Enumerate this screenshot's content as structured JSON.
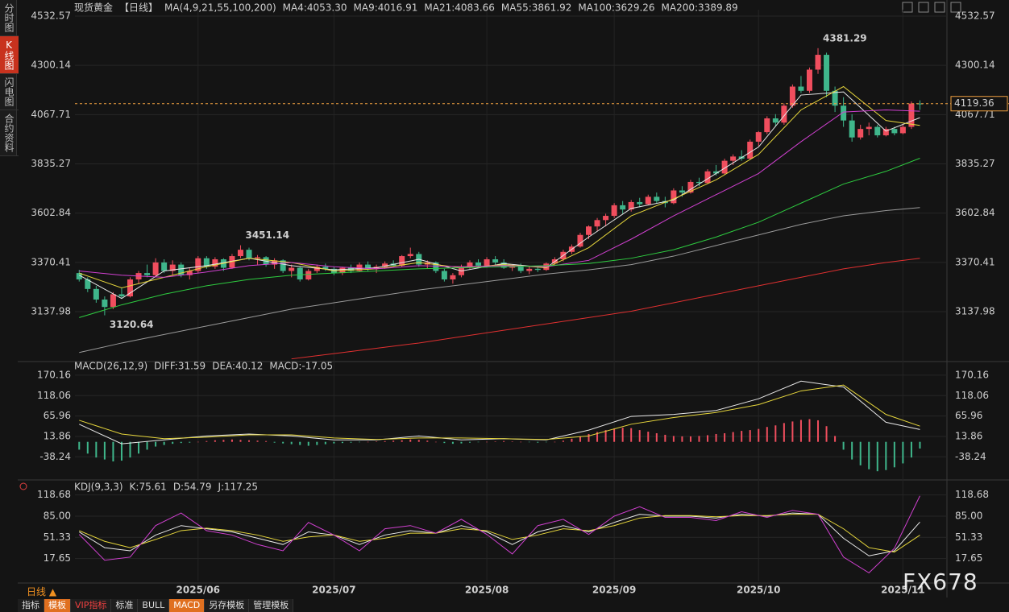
{
  "sidebar": [
    "分时图",
    "K线图",
    "闪电图",
    "合约资料"
  ],
  "footer": {
    "period": "日线 ▲",
    "tabs": [
      "指标",
      "模板",
      "VIP指标",
      "标准",
      "BULL",
      "MACD",
      "另存模板",
      "管理模板"
    ],
    "watermark": "FX678"
  },
  "chart_data": [
    {
      "type": "candlestick",
      "title": "现货黄金",
      "period": "【日线】",
      "ma_title": "MA(4,9,21,55,100,200)",
      "up_color": "#f04e5e",
      "down_color": "#3fb68b",
      "xlim": [
        -0.5,
        100
      ],
      "ylim": [
        2910,
        4563
      ],
      "yticks": [
        4532.57,
        4300.14,
        4067.71,
        3835.27,
        3602.84,
        3370.41,
        3137.98
      ],
      "xticks": [
        {
          "value": 14,
          "label": "2025/06"
        },
        {
          "value": 30,
          "label": "2025/07"
        },
        {
          "value": 48,
          "label": "2025/08"
        },
        {
          "value": 63,
          "label": "2025/09"
        },
        {
          "value": 80,
          "label": "2025/10"
        },
        {
          "value": 97,
          "label": "2025/11"
        }
      ],
      "candles": [
        [
          3320,
          3335,
          3280,
          3290
        ],
        [
          3290,
          3300,
          3230,
          3245
        ],
        [
          3245,
          3260,
          3180,
          3195
        ],
        [
          3195,
          3210,
          3120.64,
          3160
        ],
        [
          3160,
          3230,
          3150,
          3220
        ],
        [
          3220,
          3250,
          3200,
          3210
        ],
        [
          3210,
          3300,
          3205,
          3290
        ],
        [
          3290,
          3330,
          3270,
          3320
        ],
        [
          3320,
          3360,
          3300,
          3310
        ],
        [
          3310,
          3390,
          3300,
          3370
        ],
        [
          3370,
          3385,
          3320,
          3330
        ],
        [
          3330,
          3380,
          3310,
          3360
        ],
        [
          3360,
          3370,
          3300,
          3310
        ],
        [
          3310,
          3345,
          3290,
          3330
        ],
        [
          3330,
          3400,
          3320,
          3390
        ],
        [
          3390,
          3400,
          3340,
          3350
        ],
        [
          3350,
          3395,
          3340,
          3385
        ],
        [
          3385,
          3390,
          3330,
          3345
        ],
        [
          3345,
          3410,
          3340,
          3400
        ],
        [
          3400,
          3451.14,
          3390,
          3430
        ],
        [
          3430,
          3440,
          3380,
          3390
        ],
        [
          3390,
          3405,
          3360,
          3395
        ],
        [
          3395,
          3400,
          3350,
          3360
        ],
        [
          3360,
          3390,
          3340,
          3380
        ],
        [
          3380,
          3385,
          3320,
          3330
        ],
        [
          3330,
          3360,
          3300,
          3345
        ],
        [
          3345,
          3350,
          3280,
          3290
        ],
        [
          3290,
          3340,
          3285,
          3330
        ],
        [
          3330,
          3360,
          3320,
          3350
        ],
        [
          3350,
          3365,
          3330,
          3340
        ],
        [
          3340,
          3350,
          3310,
          3320
        ],
        [
          3320,
          3350,
          3310,
          3345
        ],
        [
          3345,
          3360,
          3320,
          3330
        ],
        [
          3330,
          3370,
          3325,
          3360
        ],
        [
          3360,
          3375,
          3330,
          3340
        ],
        [
          3340,
          3360,
          3320,
          3350
        ],
        [
          3350,
          3375,
          3340,
          3365
        ],
        [
          3365,
          3380,
          3350,
          3355
        ],
        [
          3355,
          3405,
          3350,
          3400
        ],
        [
          3400,
          3440,
          3390,
          3410
        ],
        [
          3410,
          3420,
          3350,
          3360
        ],
        [
          3360,
          3380,
          3340,
          3370
        ],
        [
          3370,
          3375,
          3320,
          3330
        ],
        [
          3330,
          3340,
          3280,
          3290
        ],
        [
          3290,
          3320,
          3270,
          3310
        ],
        [
          3310,
          3360,
          3300,
          3350
        ],
        [
          3350,
          3380,
          3340,
          3370
        ],
        [
          3370,
          3385,
          3345,
          3355
        ],
        [
          3355,
          3395,
          3350,
          3385
        ],
        [
          3385,
          3400,
          3360,
          3370
        ],
        [
          3370,
          3385,
          3340,
          3345
        ],
        [
          3345,
          3360,
          3330,
          3350
        ],
        [
          3350,
          3365,
          3320,
          3330
        ],
        [
          3330,
          3350,
          3315,
          3340
        ],
        [
          3340,
          3355,
          3325,
          3335
        ],
        [
          3335,
          3370,
          3330,
          3365
        ],
        [
          3365,
          3395,
          3355,
          3385
        ],
        [
          3385,
          3430,
          3375,
          3420
        ],
        [
          3420,
          3455,
          3410,
          3445
        ],
        [
          3445,
          3510,
          3440,
          3500
        ],
        [
          3500,
          3545,
          3480,
          3540
        ],
        [
          3540,
          3580,
          3520,
          3570
        ],
        [
          3570,
          3600,
          3540,
          3590
        ],
        [
          3590,
          3650,
          3580,
          3640
        ],
        [
          3640,
          3660,
          3600,
          3620
        ],
        [
          3620,
          3665,
          3610,
          3655
        ],
        [
          3655,
          3675,
          3630,
          3645
        ],
        [
          3645,
          3690,
          3640,
          3680
        ],
        [
          3680,
          3700,
          3650,
          3660
        ],
        [
          3660,
          3680,
          3630,
          3650
        ],
        [
          3650,
          3720,
          3645,
          3710
        ],
        [
          3710,
          3730,
          3680,
          3700
        ],
        [
          3700,
          3760,
          3695,
          3750
        ],
        [
          3750,
          3770,
          3730,
          3745
        ],
        [
          3745,
          3810,
          3740,
          3800
        ],
        [
          3800,
          3830,
          3780,
          3790
        ],
        [
          3790,
          3860,
          3785,
          3850
        ],
        [
          3850,
          3880,
          3830,
          3870
        ],
        [
          3870,
          3900,
          3850,
          3860
        ],
        [
          3860,
          3950,
          3855,
          3940
        ],
        [
          3940,
          3990,
          3920,
          3985
        ],
        [
          3985,
          4060,
          3975,
          4050
        ],
        [
          4050,
          4070,
          4010,
          4030
        ],
        [
          4030,
          4120,
          4020,
          4110
        ],
        [
          4110,
          4210,
          4100,
          4200
        ],
        [
          4200,
          4250,
          4170,
          4180
        ],
        [
          4180,
          4290,
          4170,
          4280
        ],
        [
          4280,
          4381.29,
          4260,
          4350
        ],
        [
          4350,
          4360,
          4150,
          4180
        ],
        [
          4180,
          4200,
          4080,
          4110
        ],
        [
          4110,
          4150,
          4010,
          4040
        ],
        [
          4040,
          4070,
          3940,
          3960
        ],
        [
          3960,
          4020,
          3950,
          4000
        ],
        [
          4000,
          4030,
          3970,
          4010
        ],
        [
          4010,
          4020,
          3960,
          3970
        ],
        [
          3970,
          4010,
          3965,
          4000
        ],
        [
          4000,
          4010,
          3970,
          3980
        ],
        [
          3980,
          4020,
          3975,
          4010
        ],
        [
          4010,
          4130,
          4000,
          4120
        ],
        [
          4120,
          4135,
          4090,
          4119.36
        ]
      ],
      "ma_x": [
        0,
        5,
        10,
        15,
        20,
        25,
        30,
        35,
        40,
        45,
        50,
        55,
        60,
        65,
        70,
        75,
        80,
        85,
        90,
        95,
        99
      ],
      "series": [
        {
          "name": "MA4:4053.30",
          "color": "#e8e8e8",
          "values": [
            3310,
            3200,
            3330,
            3355,
            3390,
            3355,
            3335,
            3345,
            3385,
            3330,
            3365,
            3345,
            3490,
            3625,
            3665,
            3790,
            3915,
            4160,
            4175,
            3990,
            4053.3
          ]
        },
        {
          "name": "MA9:4016.91",
          "color": "#e6d63c",
          "values": [
            3320,
            3250,
            3300,
            3350,
            3390,
            3370,
            3330,
            3340,
            3370,
            3345,
            3360,
            3345,
            3440,
            3590,
            3670,
            3760,
            3880,
            4090,
            4200,
            4040,
            4016.91
          ]
        },
        {
          "name": "MA21:4083.66",
          "color": "#d040d0",
          "values": [
            3330,
            3310,
            3300,
            3325,
            3355,
            3370,
            3350,
            3340,
            3355,
            3350,
            3355,
            3350,
            3380,
            3480,
            3590,
            3690,
            3790,
            3940,
            4080,
            4090,
            4083.66
          ]
        },
        {
          "name": "MA55:3861.92",
          "color": "#2ecc40",
          "values": [
            3110,
            3170,
            3220,
            3260,
            3290,
            3310,
            3320,
            3330,
            3340,
            3345,
            3350,
            3355,
            3365,
            3390,
            3430,
            3490,
            3560,
            3650,
            3740,
            3800,
            3861.92
          ]
        },
        {
          "name": "MA100:3629.26",
          "color": "#9a9a9a",
          "values": [
            2945,
            2990,
            3030,
            3070,
            3110,
            3150,
            3180,
            3210,
            3240,
            3265,
            3290,
            3315,
            3335,
            3360,
            3400,
            3450,
            3500,
            3550,
            3590,
            3615,
            3629.26
          ]
        },
        {
          "name": "MA200:3389.89",
          "color": "#e03030",
          "values": [
            null,
            null,
            null,
            null,
            null,
            2915,
            2940,
            2965,
            2990,
            3020,
            3050,
            3080,
            3110,
            3140,
            3180,
            3220,
            3260,
            3300,
            3340,
            3370,
            3389.89
          ]
        }
      ],
      "annotations": [
        {
          "x": 87,
          "y": 4381.29
        },
        {
          "x": 19,
          "y": 3451.14
        },
        {
          "x": 3,
          "y": 3120.64
        }
      ],
      "last_price_color": "#f0a040"
    },
    {
      "type": "macd",
      "title": "MACD(26,12,9)",
      "ylim": [
        -89,
        192.6
      ],
      "yticks": [
        170.16,
        118.06,
        65.96,
        13.86,
        -38.24
      ],
      "x": [
        0,
        5,
        10,
        15,
        20,
        25,
        30,
        35,
        40,
        45,
        50,
        55,
        60,
        65,
        70,
        75,
        80,
        85,
        90,
        95,
        99
      ],
      "series": [
        {
          "name": "DIFF:31.59",
          "color": "#e8e8e8",
          "values": [
            45,
            -5,
            5,
            15,
            20,
            15,
            5,
            5,
            15,
            5,
            8,
            5,
            30,
            65,
            70,
            80,
            110,
            155,
            140,
            50,
            31.59
          ]
        },
        {
          "name": "DEA:40.12",
          "color": "#e6d63c",
          "values": [
            55,
            20,
            8,
            12,
            18,
            18,
            10,
            6,
            10,
            10,
            8,
            6,
            15,
            45,
            62,
            75,
            95,
            130,
            145,
            70,
            40.12
          ]
        }
      ],
      "histogram_name": "MACD:-17.05",
      "histogram_color": "#d040d0",
      "up_color": "#f04e5e",
      "down_color": "#3fb68b",
      "histogram": [
        -20,
        -30,
        -40,
        -45,
        -50,
        -48,
        -40,
        -30,
        -20,
        -12,
        -8,
        -5,
        -3,
        -2,
        0,
        2,
        4,
        5,
        6,
        5,
        4,
        3,
        2,
        -2,
        -4,
        -6,
        -8,
        -10,
        -8,
        -6,
        -4,
        -3,
        -2,
        -1,
        0,
        1,
        2,
        3,
        4,
        6,
        5,
        3,
        0,
        -3,
        -5,
        -4,
        -2,
        -1,
        0,
        1,
        2,
        1,
        0,
        -1,
        -2,
        -1,
        0,
        3,
        8,
        14,
        20,
        25,
        30,
        34,
        36,
        35,
        30,
        26,
        22,
        18,
        15,
        14,
        14,
        15,
        17,
        20,
        22,
        25,
        28,
        30,
        33,
        38,
        42,
        48,
        52,
        56,
        58,
        55,
        40,
        15,
        -20,
        -45,
        -60,
        -70,
        -75,
        -72,
        -65,
        -55,
        -40,
        -17.05
      ]
    },
    {
      "type": "line",
      "title": "KDJ(9,3,3)",
      "ylim": [
        -18.6,
        131
      ],
      "yticks": [
        118.68,
        {
          "value": 85,
          "label": "85.00"
        },
        51.33,
        17.65
      ],
      "x": [
        0,
        3,
        6,
        9,
        12,
        15,
        18,
        21,
        24,
        27,
        30,
        33,
        36,
        39,
        42,
        45,
        48,
        51,
        54,
        57,
        60,
        63,
        66,
        69,
        72,
        75,
        78,
        81,
        84,
        87,
        90,
        93,
        96,
        99
      ],
      "series": [
        {
          "name": "K:75.61",
          "color": "#e8e8e8",
          "values": [
            60,
            35,
            30,
            55,
            70,
            65,
            60,
            50,
            40,
            60,
            55,
            40,
            55,
            62,
            58,
            70,
            60,
            40,
            60,
            70,
            60,
            75,
            88,
            85,
            85,
            82,
            88,
            85,
            90,
            88,
            50,
            22,
            30,
            75.61
          ]
        },
        {
          "name": "D:54.79",
          "color": "#e6d63c",
          "values": [
            62,
            45,
            35,
            48,
            62,
            66,
            62,
            55,
            45,
            52,
            55,
            45,
            50,
            58,
            58,
            65,
            62,
            48,
            55,
            65,
            62,
            70,
            82,
            86,
            86,
            84,
            86,
            86,
            88,
            88,
            65,
            35,
            28,
            54.79
          ]
        },
        {
          "name": "J:117.25",
          "color": "#d040d0",
          "values": [
            56,
            15,
            20,
            70,
            90,
            62,
            55,
            40,
            30,
            75,
            55,
            30,
            65,
            70,
            58,
            80,
            56,
            25,
            70,
            80,
            56,
            85,
            100,
            83,
            83,
            78,
            92,
            83,
            94,
            88,
            20,
            -5,
            34,
            117.25
          ]
        }
      ]
    }
  ]
}
